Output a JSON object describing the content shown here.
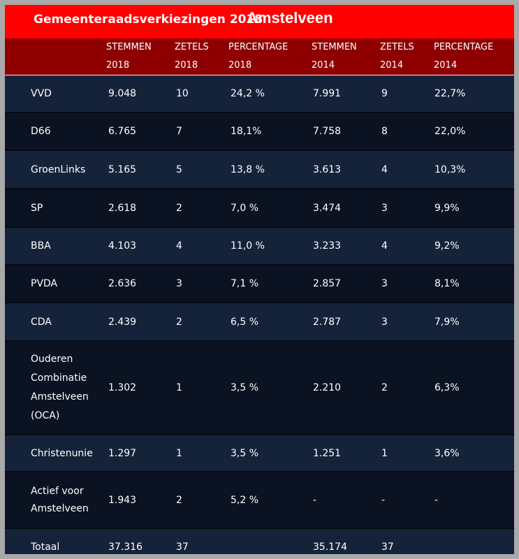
{
  "title": {
    "main": "Gemeenteraadsverkiezingen 2018",
    "city": "Amstelveen"
  },
  "columns": [
    {
      "line1": "STEMMEN",
      "line2": "2018"
    },
    {
      "line1": "ZETELS",
      "line2": "2018"
    },
    {
      "line1": "PERCENTAGE",
      "line2": "2018"
    },
    {
      "line1": "STEMMEN",
      "line2": "2014"
    },
    {
      "line1": "ZETELS",
      "line2": "2014"
    },
    {
      "line1": "PERCENTAGE",
      "line2": "2014"
    }
  ],
  "rows": [
    {
      "party": "VVD",
      "values": [
        "9.048",
        "10",
        "24,2 %",
        "7.991",
        "9",
        "22,7%"
      ]
    },
    {
      "party": "D66",
      "values": [
        "6.765",
        "7",
        "18,1%",
        "7.758",
        "8",
        "22,0%"
      ]
    },
    {
      "party": "GroenLinks",
      "values": [
        "5.165",
        "5",
        "13,8 %",
        "3.613",
        "4",
        "10,3%"
      ]
    },
    {
      "party": "SP",
      "values": [
        "2.618",
        "2",
        "7,0 %",
        "3.474",
        "3",
        "9,9%"
      ]
    },
    {
      "party": "BBA",
      "values": [
        "4.103",
        "4",
        "11,0 %",
        "3.233",
        "4",
        "9,2%"
      ]
    },
    {
      "party": "PVDA",
      "values": [
        "2.636",
        "3",
        "7,1 %",
        "2.857",
        "3",
        "8,1%"
      ]
    },
    {
      "party": "CDA",
      "values": [
        "2.439",
        "2",
        "6,5 %",
        "2.787",
        "3",
        "7,9%"
      ]
    },
    {
      "party": "Ouderen Combinatie Amstelveen (OCA)",
      "values": [
        "1.302",
        "1",
        "3,5 %",
        "2.210",
        "2",
        "6,3%"
      ]
    },
    {
      "party": "Christenunie",
      "values": [
        "1.297",
        "1",
        "3,5 %",
        "1.251",
        "1",
        "3,6%"
      ]
    },
    {
      "party": "Actief voor Amstelveen",
      "values": [
        "1.943",
        "2",
        "5,2 %",
        "-",
        "-",
        "-"
      ]
    },
    {
      "party": "Totaal",
      "values": [
        "37.316",
        "37",
        "",
        "35.174",
        "37",
        ""
      ]
    }
  ],
  "colors": {
    "title_bg": "#ff0000",
    "header_bg": "#8e0000",
    "row_odd": "#15233a",
    "row_even": "#0b1322"
  }
}
